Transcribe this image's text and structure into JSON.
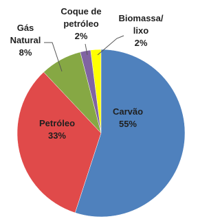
{
  "chart_data": {
    "type": "pie",
    "categories": [
      "Carvão",
      "Petróleo",
      "Gás\nNatural",
      "Coque de\npetróleo",
      "Biomassa/\nlixo"
    ],
    "values": [
      55,
      33,
      8,
      2,
      2
    ],
    "value_labels": [
      "55%",
      "33%",
      "8%",
      "2%",
      "2%"
    ],
    "colors": [
      "#4f81bd",
      "#e04a4a",
      "#86a844",
      "#8064a2",
      "#ffff00"
    ]
  }
}
